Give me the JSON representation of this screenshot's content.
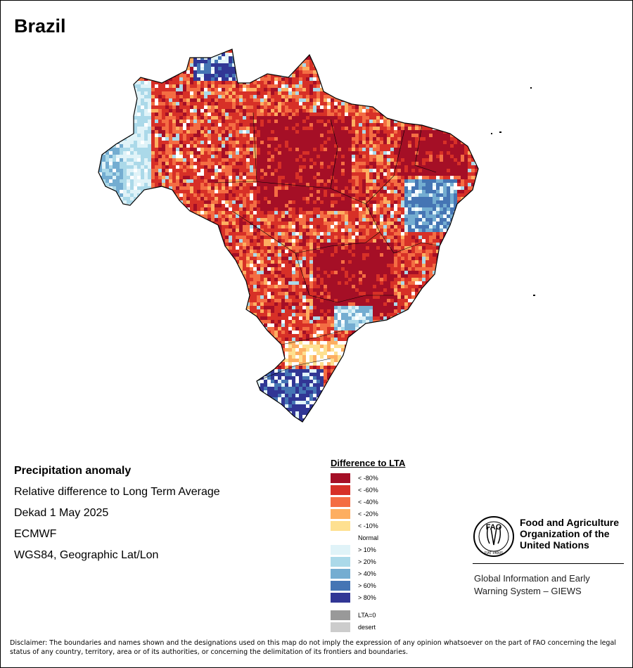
{
  "map_title": "Brazil",
  "info": {
    "heading": "Precipitation anomaly",
    "line1": "Relative difference to Long Term Average",
    "line2": "Dekad 1 May 2025",
    "line3": "ECMWF",
    "line4": "WGS84, Geographic Lat/Lon"
  },
  "legend": {
    "title": "Difference to LTA",
    "items": [
      {
        "label": "< -80%",
        "color": "#A50F26"
      },
      {
        "label": "< -60%",
        "color": "#D73027"
      },
      {
        "label": "< -40%",
        "color": "#F46D43"
      },
      {
        "label": "< -20%",
        "color": "#FDAE61"
      },
      {
        "label": "< -10%",
        "color": "#FEE090"
      },
      {
        "label": "Normal",
        "color": "#FFFFFF"
      },
      {
        "label": "> 10%",
        "color": "#E0F3F8"
      },
      {
        "label": "> 20%",
        "color": "#ABD9E9"
      },
      {
        "label": "> 40%",
        "color": "#74ADD1"
      },
      {
        "label": "> 60%",
        "color": "#4575B4"
      },
      {
        "label": "> 80%",
        "color": "#313695"
      }
    ],
    "extra": [
      {
        "label": "LTA=0",
        "color": "#999999"
      },
      {
        "label": "desert",
        "color": "#CCCCCC"
      }
    ]
  },
  "fao": {
    "logo_text": "FAO",
    "logo_bottom_text": "FIAT PANIS",
    "name_line1": "Food and Agriculture",
    "name_line2": "Organization of the",
    "name_line3": "United Nations",
    "giews_line1": "Global Information and Early",
    "giews_line2": "Warning System – GIEWS"
  },
  "disclaimer": "Disclaimer: The boundaries and names shown and the designations used on this map do not imply the expression of any opinion whatsoever on the part of FAO concerning the legal status of any country, territory, area or of its authorities, or concerning the delimitation of its frontiers and boundaries."
}
